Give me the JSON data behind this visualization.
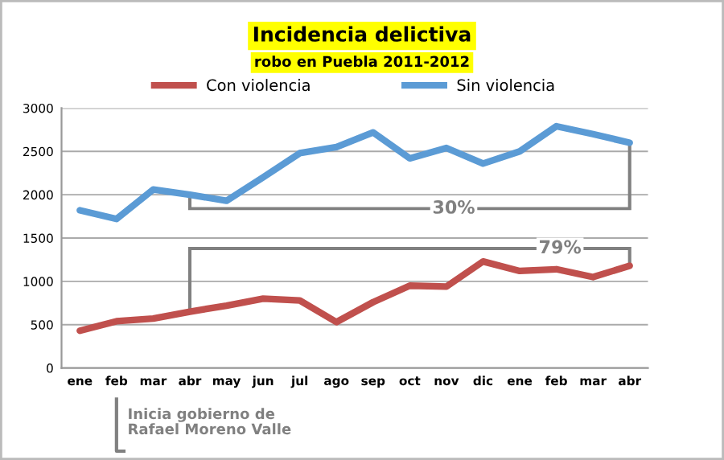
{
  "chart_data": {
    "type": "line",
    "title": "Incidencia delictiva",
    "subtitle": "robo en Puebla 2011-2012",
    "categories": [
      "ene",
      "feb",
      "mar",
      "abr",
      "may",
      "jun",
      "jul",
      "ago",
      "sep",
      "oct",
      "nov",
      "dic",
      "ene",
      "feb",
      "mar",
      "abr"
    ],
    "series": [
      {
        "name": "Con violencia",
        "color": "#c0504d",
        "values": [
          430,
          540,
          570,
          650,
          720,
          800,
          780,
          530,
          760,
          950,
          940,
          1230,
          1120,
          1140,
          1050,
          1180
        ]
      },
      {
        "name": "Sin violencia",
        "color": "#5b9bd5",
        "values": [
          1820,
          1720,
          2060,
          2000,
          1930,
          2200,
          2480,
          2550,
          2720,
          2420,
          2540,
          2360,
          2500,
          2790,
          2700,
          2600
        ]
      }
    ],
    "ylim": [
      0,
      3000
    ],
    "yticks": [
      0,
      500,
      1000,
      1500,
      2000,
      2500,
      3000
    ],
    "grid": "y",
    "legend": "top",
    "marker": "none",
    "line_style": "solid",
    "annotations": [
      "30%",
      "79%",
      "Inicia gobierno de\nRafael Moreno Valle"
    ]
  }
}
